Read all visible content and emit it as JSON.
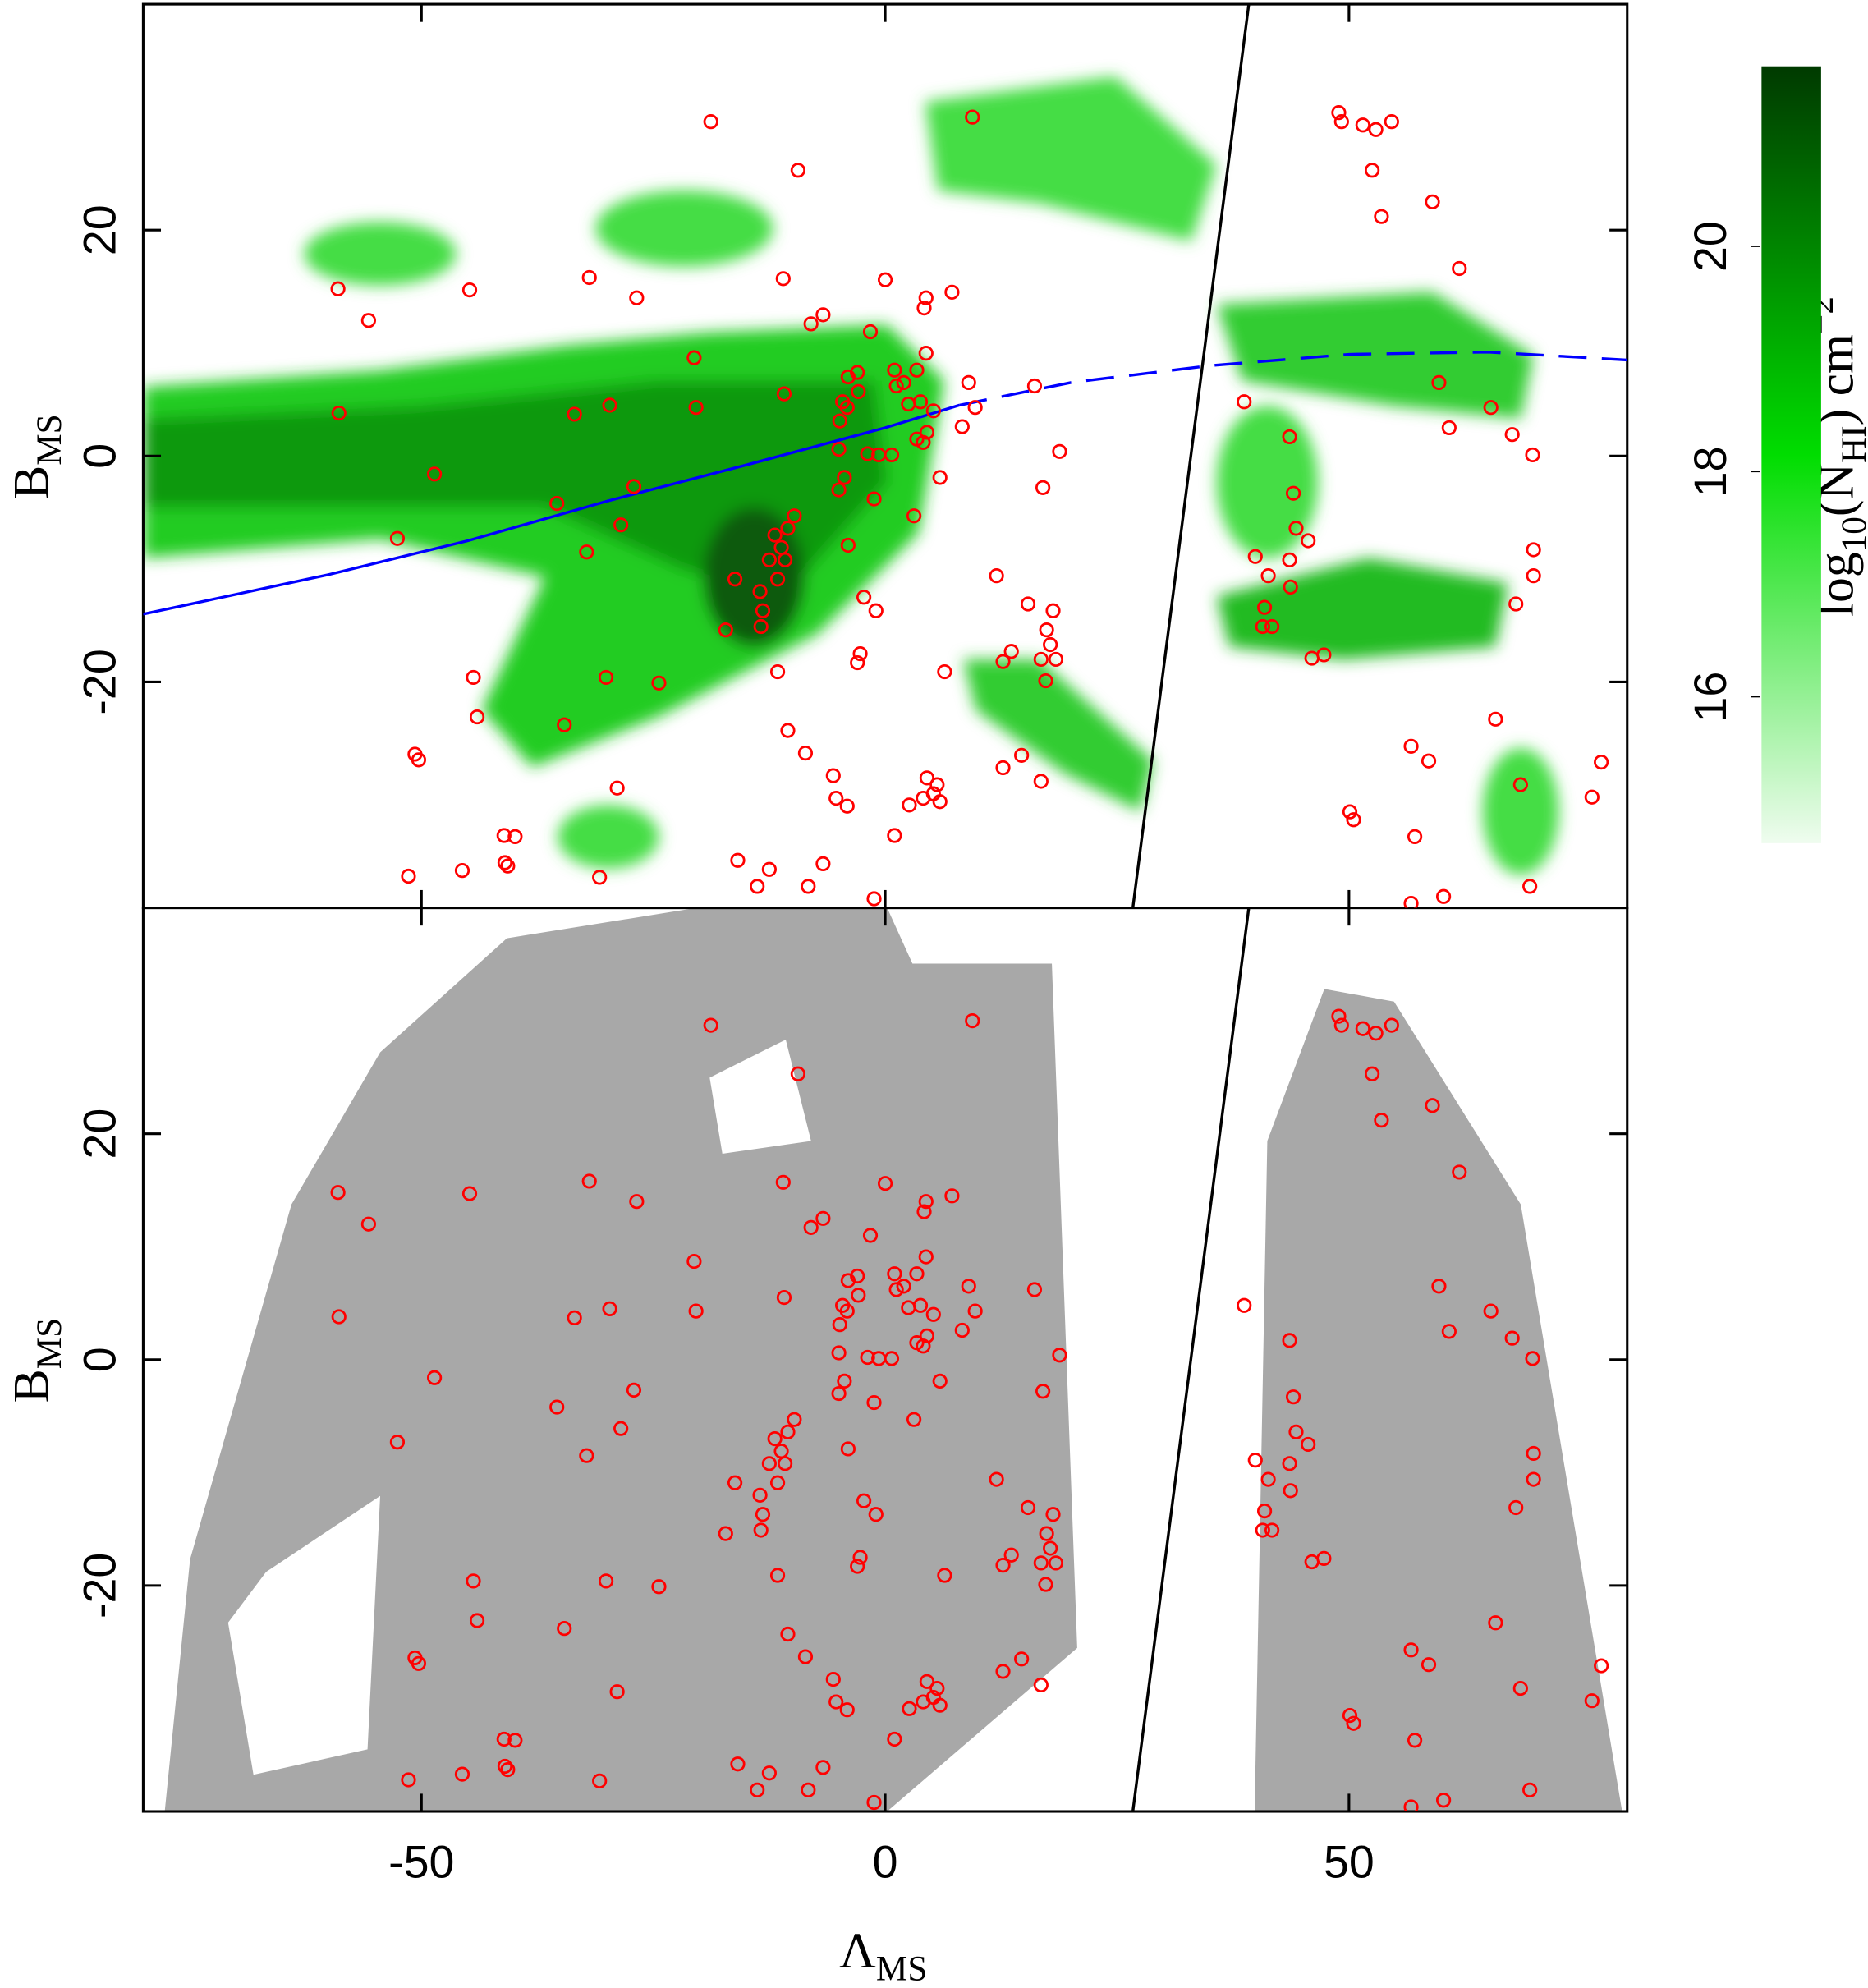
{
  "chart_data": {
    "type": "scatter",
    "x_label": [
      {
        "text": "Λ"
      },
      {
        "text": "MS",
        "shift": "sub"
      }
    ],
    "y_label": [
      {
        "text": "B"
      },
      {
        "text": "MS",
        "shift": "sub"
      }
    ],
    "xlim": [
      -80,
      80
    ],
    "xticks": [
      -50,
      0,
      50
    ],
    "ylim": [
      -40,
      40
    ],
    "yticks": [
      -20,
      0,
      20
    ],
    "points": {
      "color": "#ff0000",
      "x": [
        -59.0,
        -55.7,
        -58.9,
        -52.6,
        -44.8,
        -48.6,
        -44.4,
        -44.0,
        -50.7,
        -50.3,
        -51.4,
        -45.6,
        -41.1,
        -39.9,
        -41.0,
        -40.7,
        -34.6,
        -33.5,
        -35.4,
        -31.9,
        -32.2,
        -29.7,
        -30.1,
        -28.9,
        -30.8,
        -28.5,
        -27.1,
        -26.8,
        -24.4,
        -20.6,
        -20.4,
        -18.8,
        -17.2,
        -16.2,
        -15.9,
        -13.8,
        -12.5,
        -11.9,
        -12.5,
        -11.2,
        -10.5,
        -11.6,
        -13.5,
        -13.2,
        -10.8,
        -9.8,
        -13.4,
        -11.6,
        -10.5,
        -10.9,
        -9.4,
        -11.0,
        -8.0,
        -6.7,
        -5.6,
        -5.3,
        -4.1,
        -8.6,
        -6.7,
        -8.3,
        -1.2,
        -4.6,
        -4.1,
        -4.9,
        -4.0,
        -3.0,
        -2.9,
        -1.6,
        0,
        -5.0,
        -4.4,
        -5.0,
        -1.9,
        -0.7,
        0.7,
        -1.2,
        -4.0,
        -2.3,
        -1.0,
        -2.7,
        -3.0,
        1.0,
        1.2,
        2.0,
        3.4,
        4.4,
        4.2,
        4.4,
        2.5,
        3.4,
        4.1,
        4.5,
        5.2,
        5.9,
        3.1,
        3.8,
        7.2,
        9.0,
        9.4,
        8.3,
        9.7,
        2.6,
        1.0,
        4.5,
        5.2,
        5.6,
        5.9,
        4.1,
        6.4,
        12.0,
        12.7,
        13.6,
        12.7,
        14.7,
        16.1,
        17.0,
        18.8,
        15.4,
        16.8,
        17.4,
        18.1,
        17.8,
        18.4,
        17.3,
        16.8,
        38.7,
        39.9,
        41.3,
        40.9,
        40.7,
        41.7,
        43.6,
        44.0,
        44.3,
        43.6,
        43.7,
        45.6,
        46.0,
        47.3,
        48.9,
        49.2,
        51.5,
        52.9,
        54.6,
        52.5,
        53.5,
        59.0,
        61.9,
        59.7,
        60.8,
        65.3,
        67.6,
        69.8,
        69.9,
        69.9,
        68.0,
        65.8,
        56.7,
        58.6,
        50.1,
        50.5,
        57.1,
        60.2,
        56.7,
        68.5,
        69.5,
        76.2,
        77.2
      ],
      "y": [
        14.8,
        12.0,
        3.8,
        -7.3,
        14.7,
        -1.6,
        -19.6,
        -23.1,
        -26.4,
        -26.9,
        -37.2,
        -36.7,
        -33.6,
        -33.7,
        -36.0,
        -36.3,
        -23.8,
        3.7,
        -4.2,
        15.8,
        -8.5,
        4.5,
        -19.6,
        -29.4,
        -37.3,
        -6.1,
        -2.7,
        14.0,
        -20.1,
        8.7,
        4.3,
        29.6,
        -15.4,
        -10.9,
        -35.8,
        -38.1,
        -36.6,
        -7.0,
        -9.2,
        -8.1,
        -6.4,
        -10.9,
        -12.0,
        -13.7,
        -9.2,
        -5.3,
        -15.1,
        -19.1,
        -24.3,
        5.5,
        25.3,
        15.7,
        11.7,
        12.5,
        -28.3,
        -30.3,
        -31.0,
        -26.3,
        -36.1,
        -38.1,
        -39.2,
        4.8,
        4.3,
        3.1,
        7.0,
        7.4,
        5.7,
        11.0,
        15.6,
        0.6,
        -1.9,
        -3.0,
        0.2,
        0.1,
        0.1,
        -3.8,
        -7.9,
        -12.5,
        -13.7,
        -17.5,
        -18.3,
        7.6,
        6.2,
        6.5,
        7.6,
        14.0,
        13.1,
        9.1,
        4.6,
        1.5,
        1.2,
        2.1,
        4.0,
        -1.9,
        -5.3,
        4.8,
        14.5,
        6.5,
        30.0,
        2.6,
        4.3,
        -30.9,
        -33.6,
        -28.5,
        -29.9,
        -29.1,
        -30.6,
        -30.3,
        -19.1,
        -10.6,
        -18.2,
        -17.3,
        -27.6,
        -26.5,
        6.2,
        -2.8,
        0.4,
        -13.1,
        -18.0,
        -15.4,
        -13.7,
        -16.7,
        -18.0,
        -19.9,
        -28.8,
        4.8,
        -8.9,
        -10.6,
        -13.4,
        -15.1,
        -15.1,
        1.7,
        -3.3,
        -6.4,
        -9.2,
        -11.6,
        -7.5,
        -17.9,
        -17.6,
        30.4,
        29.6,
        29.3,
        28.9,
        29.6,
        25.3,
        21.2,
        22.5,
        16.6,
        6.5,
        2.5,
        4.3,
        1.9,
        0.1,
        -8.3,
        -10.6,
        -13.1,
        -23.3,
        -25.7,
        -27.0,
        -31.5,
        -32.2,
        -33.7,
        -39.0,
        -39.6,
        -29.1,
        -38.1,
        -30.2,
        -27.1
      ]
    },
    "lines": [
      {
        "color": "#0000ff",
        "style": "solid",
        "panels": [
          0
        ],
        "x": [
          -80,
          -60,
          -45,
          -30,
          -15,
          0,
          8
        ],
        "y": [
          -14,
          -10.5,
          -7.5,
          -4,
          -0.8,
          2.5,
          4.5
        ]
      },
      {
        "color": "#0000ff",
        "style": "dashed",
        "panels": [
          0
        ],
        "x": [
          8,
          20,
          35,
          50,
          65,
          80
        ],
        "y": [
          4.5,
          6.5,
          8,
          9,
          9.2,
          8.5
        ]
      },
      {
        "color": "#000000",
        "style": "solid",
        "panels": [
          0,
          1
        ],
        "x": [
          26.7,
          39.2
        ],
        "y": [
          -40,
          40
        ]
      }
    ],
    "colorbar": {
      "colors": [
        "#effcef",
        "#00dd00",
        "#003a00"
      ],
      "lim": [
        14.7,
        21.6
      ],
      "ticks": [
        16,
        18,
        20
      ],
      "label": [
        {
          "text": "log"
        },
        {
          "text": "10",
          "shift": "sub"
        },
        {
          "text": "(N"
        },
        {
          "text": "HI",
          "shift": "sub"
        },
        {
          "text": ") cm"
        },
        {
          "text": "−2",
          "shift": "sup"
        }
      ]
    }
  }
}
